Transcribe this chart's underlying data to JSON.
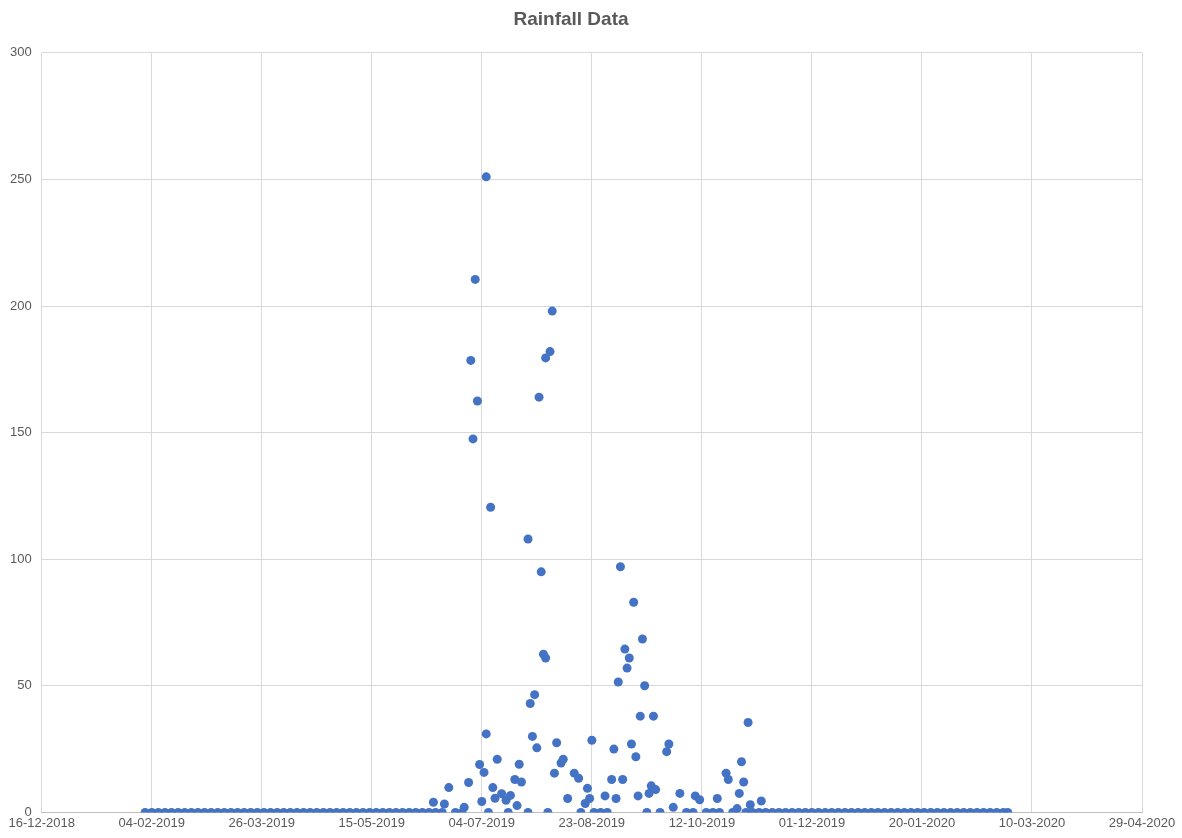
{
  "chart_data": {
    "type": "scatter",
    "title": "Rainfall Data",
    "marker": "circle",
    "grid": true,
    "legend": false,
    "xlim": [
      "2018-12-16",
      "2020-04-29"
    ],
    "xticks": [
      {
        "value": "2018-12-16",
        "label": "16-12-2018"
      },
      {
        "value": "2019-02-04",
        "label": "04-02-2019"
      },
      {
        "value": "2019-03-26",
        "label": "26-03-2019"
      },
      {
        "value": "2019-05-15",
        "label": "15-05-2019"
      },
      {
        "value": "2019-07-04",
        "label": "04-07-2019"
      },
      {
        "value": "2019-08-23",
        "label": "23-08-2019"
      },
      {
        "value": "2019-10-12",
        "label": "12-10-2019"
      },
      {
        "value": "2019-12-01",
        "label": "01-12-2019"
      },
      {
        "value": "2020-01-20",
        "label": "20-01-2020"
      },
      {
        "value": "2020-03-10",
        "label": "10-03-2020"
      },
      {
        "value": "2020-04-29",
        "label": "29-04-2020"
      }
    ],
    "ylim": [
      0,
      300
    ],
    "yticks": [
      0,
      50,
      100,
      150,
      200,
      250,
      300
    ],
    "series": [
      {
        "color": "#4472c4",
        "x": [
          "2019-02-01",
          "2019-02-04",
          "2019-02-07",
          "2019-02-10",
          "2019-02-13",
          "2019-02-16",
          "2019-02-19",
          "2019-02-22",
          "2019-02-25",
          "2019-02-28",
          "2019-03-03",
          "2019-03-06",
          "2019-03-09",
          "2019-03-12",
          "2019-03-15",
          "2019-03-18",
          "2019-03-21",
          "2019-03-24",
          "2019-03-27",
          "2019-03-30",
          "2019-04-02",
          "2019-04-05",
          "2019-04-08",
          "2019-04-11",
          "2019-04-14",
          "2019-04-17",
          "2019-04-20",
          "2019-04-23",
          "2019-04-26",
          "2019-04-29",
          "2019-05-02",
          "2019-05-05",
          "2019-05-08",
          "2019-05-11",
          "2019-05-14",
          "2019-05-17",
          "2019-05-20",
          "2019-05-23",
          "2019-05-26",
          "2019-05-29",
          "2019-06-01",
          "2019-06-04",
          "2019-06-07",
          "2019-06-10",
          "2019-06-13",
          "2019-06-16",
          "2019-06-22",
          "2019-06-25",
          "2019-07-07",
          "2019-07-16",
          "2019-07-25",
          "2019-08-03",
          "2019-08-18",
          "2019-08-24",
          "2019-08-27",
          "2019-08-30",
          "2019-09-17",
          "2019-09-23",
          "2019-10-05",
          "2019-10-08",
          "2019-10-14",
          "2019-10-17",
          "2019-10-20",
          "2019-10-26",
          "2019-11-01",
          "2019-11-04",
          "2019-11-07",
          "2019-11-10",
          "2019-11-13",
          "2019-11-16",
          "2019-11-19",
          "2019-11-22",
          "2019-11-25",
          "2019-11-28",
          "2019-12-01",
          "2019-12-04",
          "2019-12-07",
          "2019-12-10",
          "2019-12-13",
          "2019-12-16",
          "2019-12-19",
          "2019-12-22",
          "2019-12-25",
          "2019-12-28",
          "2019-12-31",
          "2020-01-03",
          "2020-01-06",
          "2020-01-09",
          "2020-01-12",
          "2020-01-15",
          "2020-01-18",
          "2020-01-21",
          "2020-01-24",
          "2020-01-27",
          "2020-01-30",
          "2020-02-02",
          "2020-02-05",
          "2020-02-08",
          "2020-02-11",
          "2020-02-14",
          "2020-02-17",
          "2020-02-20",
          "2020-02-23",
          "2020-02-26",
          "2020-02-28"
        ],
        "values": [
          0,
          0,
          0,
          0,
          0,
          0,
          0,
          0,
          0,
          0,
          0,
          0,
          0,
          0,
          0,
          0,
          0,
          0,
          0,
          0,
          0,
          0,
          0,
          0,
          0,
          0,
          0,
          0,
          0,
          0,
          0,
          0,
          0,
          0,
          0,
          0,
          0,
          0,
          0,
          0,
          0,
          0,
          0,
          0,
          0,
          0,
          0,
          0,
          0,
          0,
          0,
          0,
          0,
          0,
          0,
          0,
          0,
          0,
          0,
          0,
          0,
          0,
          0,
          0,
          0,
          0,
          0,
          0,
          0,
          0,
          0,
          0,
          0,
          0,
          0,
          0,
          0,
          0,
          0,
          0,
          0,
          0,
          0,
          0,
          0,
          0,
          0,
          0,
          0,
          0,
          0,
          0,
          0,
          0,
          0,
          0,
          0,
          0,
          0,
          0,
          0,
          0,
          0,
          0,
          0
        ]
      },
      {
        "color": "#4472c4",
        "x": [
          "2019-06-12",
          "2019-06-17",
          "2019-06-19",
          "2019-06-26",
          "2019-06-28",
          "2019-06-29",
          "2019-06-30",
          "2019-07-01",
          "2019-07-02",
          "2019-07-03",
          "2019-07-04",
          "2019-07-05",
          "2019-07-06",
          "2019-07-06",
          "2019-07-08",
          "2019-07-09",
          "2019-07-10",
          "2019-07-11",
          "2019-07-13",
          "2019-07-15",
          "2019-07-17",
          "2019-07-19",
          "2019-07-20",
          "2019-07-21",
          "2019-07-22",
          "2019-07-25",
          "2019-07-26",
          "2019-07-27",
          "2019-07-28",
          "2019-07-29",
          "2019-07-30",
          "2019-07-31",
          "2019-08-01",
          "2019-08-02",
          "2019-08-02",
          "2019-08-04",
          "2019-08-05",
          "2019-08-06",
          "2019-08-07",
          "2019-08-09",
          "2019-08-10",
          "2019-08-12",
          "2019-08-15",
          "2019-08-17",
          "2019-08-20",
          "2019-08-21",
          "2019-08-22",
          "2019-08-23",
          "2019-08-29",
          "2019-09-01",
          "2019-09-02",
          "2019-09-03",
          "2019-09-04",
          "2019-09-05",
          "2019-09-06",
          "2019-09-07",
          "2019-09-08",
          "2019-09-09",
          "2019-09-10",
          "2019-09-11",
          "2019-09-12",
          "2019-09-13",
          "2019-09-14",
          "2019-09-15",
          "2019-09-16",
          "2019-09-18",
          "2019-09-19",
          "2019-09-20",
          "2019-09-21",
          "2019-09-26",
          "2019-09-27",
          "2019-09-29",
          "2019-10-02",
          "2019-10-09",
          "2019-10-11",
          "2019-10-19",
          "2019-10-23",
          "2019-10-24",
          "2019-10-28",
          "2019-10-29",
          "2019-10-30",
          "2019-10-31",
          "2019-11-02",
          "2019-11-03",
          "2019-11-08"
        ],
        "values": [
          4,
          3.3,
          9.8,
          2,
          11.8,
          178.5,
          147.5,
          210.5,
          162.5,
          18.9,
          4.3,
          15.8,
          31,
          251,
          120.5,
          9.8,
          5.6,
          21,
          7.4,
          4.8,
          6.7,
          13,
          2.7,
          19,
          12,
          108,
          43,
          30,
          46.5,
          25.5,
          164,
          95,
          62.5,
          61,
          179.5,
          182,
          198,
          15.5,
          27.5,
          19.5,
          21,
          5.5,
          15.5,
          13.5,
          3.5,
          9.5,
          5.5,
          28.5,
          6.5,
          13,
          25,
          5.5,
          51.5,
          97,
          13,
          64.5,
          57,
          61,
          27,
          83,
          22,
          6.5,
          38,
          68.5,
          50,
          7.5,
          10.5,
          38,
          9,
          24,
          27,
          2,
          7.5,
          6.5,
          5,
          5.5,
          15.5,
          13,
          1.5,
          7.5,
          20,
          12,
          35.5,
          3,
          4.5
        ]
      }
    ]
  }
}
